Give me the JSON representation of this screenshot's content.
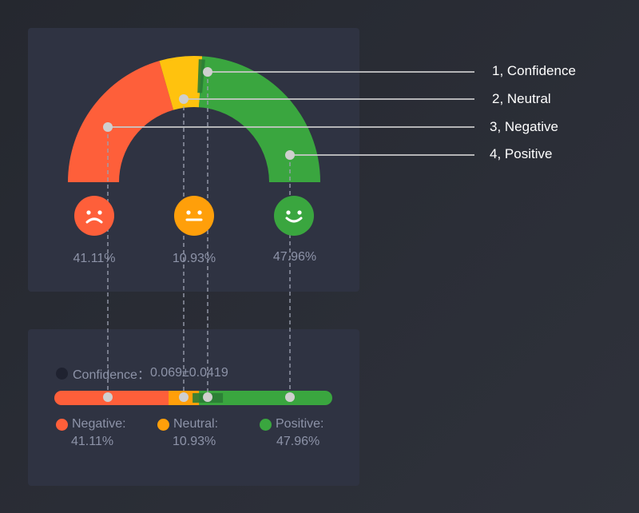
{
  "callouts": [
    {
      "label": "1,  Confidence"
    },
    {
      "label": "2,  Neutral"
    },
    {
      "label": "3,  Negative"
    },
    {
      "label": "4,  Positive"
    }
  ],
  "categories": [
    {
      "name": "Negative",
      "value": 41.11,
      "display": "41.11%",
      "legend_label": "Negative:",
      "color": "#fe5f3a",
      "face": "sad-face"
    },
    {
      "name": "Neutral",
      "value": 10.93,
      "display": "10.93%",
      "legend_label": "Neutral:",
      "color": "#ffc20e",
      "face": "neutral-face"
    },
    {
      "name": "Positive",
      "value": 47.96,
      "display": "47.96%",
      "legend_label": "Positive:",
      "color": "#3aa63f",
      "face": "happy-face"
    }
  ],
  "neutral_face_color": "#ff9f0a",
  "neutral_legend_color": "#ff9f0a",
  "confidence": {
    "label": "Confidence：",
    "value_text": "0.069±0.0419",
    "value": 0.069,
    "error": 0.0419,
    "color": "#2b7d35"
  }
}
